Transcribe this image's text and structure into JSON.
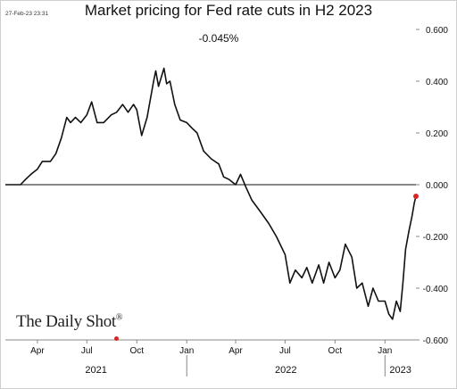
{
  "header": {
    "timestamp": "27-Feb-23 23:31",
    "title": "Market pricing for Fed rate cuts in H2 2023",
    "subtitle": "-0.045%"
  },
  "branding": {
    "logo_text": "The Daily Shot",
    "logo_mark": "®"
  },
  "colors": {
    "line": "#111111",
    "last_point": "#d62728",
    "zero_line": "#111111"
  },
  "chart_data": {
    "type": "line",
    "title": "Market pricing for Fed rate cuts in H2 2023",
    "subtitle": "-0.045%",
    "xlabel": "",
    "ylabel": "",
    "x_range": [
      "2021-02-01",
      "2023-02-27"
    ],
    "ylim": [
      -0.6,
      0.6
    ],
    "y_ticks": [
      0.6,
      0.4,
      0.2,
      0.0,
      -0.2,
      -0.4,
      -0.6
    ],
    "y_tick_labels": [
      "0.600",
      "0.400",
      "0.200",
      "0.000",
      "-0.200",
      "-0.400",
      "-0.600"
    ],
    "y_axis_side": "right",
    "grid": false,
    "zero_line": true,
    "x_month_ticks": [
      {
        "date": "2021-04-01",
        "label": "Apr"
      },
      {
        "date": "2021-07-01",
        "label": "Jul"
      },
      {
        "date": "2021-10-01",
        "label": "Oct"
      },
      {
        "date": "2022-01-01",
        "label": "Jan"
      },
      {
        "date": "2022-04-01",
        "label": "Apr"
      },
      {
        "date": "2022-07-01",
        "label": "Jul"
      },
      {
        "date": "2022-10-01",
        "label": "Oct"
      },
      {
        "date": "2023-01-01",
        "label": "Jan"
      }
    ],
    "x_year_labels": [
      {
        "label": "2021",
        "start": "2021-02-01",
        "end": "2022-01-01"
      },
      {
        "label": "2022",
        "start": "2022-01-01",
        "end": "2023-01-01"
      },
      {
        "label": "2023",
        "start": "2023-01-01",
        "end": "2023-02-27"
      }
    ],
    "series": [
      {
        "points": [
          [
            "2021-02-01",
            0.0
          ],
          [
            "2021-03-01",
            0.0
          ],
          [
            "2021-03-10",
            0.02
          ],
          [
            "2021-03-20",
            0.04
          ],
          [
            "2021-04-01",
            0.06
          ],
          [
            "2021-04-10",
            0.09
          ],
          [
            "2021-04-25",
            0.09
          ],
          [
            "2021-05-05",
            0.12
          ],
          [
            "2021-05-15",
            0.18
          ],
          [
            "2021-05-25",
            0.26
          ],
          [
            "2021-06-01",
            0.24
          ],
          [
            "2021-06-10",
            0.26
          ],
          [
            "2021-06-20",
            0.24
          ],
          [
            "2021-07-01",
            0.27
          ],
          [
            "2021-07-10",
            0.32
          ],
          [
            "2021-07-20",
            0.24
          ],
          [
            "2021-08-01",
            0.24
          ],
          [
            "2021-08-15",
            0.27
          ],
          [
            "2021-08-25",
            0.28
          ],
          [
            "2021-09-05",
            0.31
          ],
          [
            "2021-09-15",
            0.28
          ],
          [
            "2021-09-25",
            0.31
          ],
          [
            "2021-10-01",
            0.29
          ],
          [
            "2021-10-10",
            0.19
          ],
          [
            "2021-10-20",
            0.26
          ],
          [
            "2021-11-01",
            0.4
          ],
          [
            "2021-11-05",
            0.44
          ],
          [
            "2021-11-10",
            0.38
          ],
          [
            "2021-11-20",
            0.45
          ],
          [
            "2021-11-25",
            0.39
          ],
          [
            "2021-12-01",
            0.4
          ],
          [
            "2021-12-10",
            0.31
          ],
          [
            "2021-12-20",
            0.25
          ],
          [
            "2022-01-01",
            0.24
          ],
          [
            "2022-01-10",
            0.22
          ],
          [
            "2022-01-20",
            0.2
          ],
          [
            "2022-02-01",
            0.13
          ],
          [
            "2022-02-15",
            0.1
          ],
          [
            "2022-03-01",
            0.08
          ],
          [
            "2022-03-10",
            0.03
          ],
          [
            "2022-03-20",
            0.02
          ],
          [
            "2022-04-01",
            0.0
          ],
          [
            "2022-04-10",
            0.04
          ],
          [
            "2022-04-20",
            -0.01
          ],
          [
            "2022-05-01",
            -0.06
          ],
          [
            "2022-05-15",
            -0.1
          ],
          [
            "2022-06-01",
            -0.15
          ],
          [
            "2022-06-15",
            -0.2
          ],
          [
            "2022-07-01",
            -0.27
          ],
          [
            "2022-07-10",
            -0.38
          ],
          [
            "2022-07-20",
            -0.33
          ],
          [
            "2022-08-01",
            -0.36
          ],
          [
            "2022-08-10",
            -0.32
          ],
          [
            "2022-08-20",
            -0.38
          ],
          [
            "2022-09-01",
            -0.31
          ],
          [
            "2022-09-10",
            -0.38
          ],
          [
            "2022-09-20",
            -0.3
          ],
          [
            "2022-10-01",
            -0.36
          ],
          [
            "2022-10-10",
            -0.33
          ],
          [
            "2022-10-20",
            -0.23
          ],
          [
            "2022-11-01",
            -0.28
          ],
          [
            "2022-11-10",
            -0.4
          ],
          [
            "2022-11-20",
            -0.38
          ],
          [
            "2022-12-01",
            -0.47
          ],
          [
            "2022-12-10",
            -0.4
          ],
          [
            "2022-12-20",
            -0.45
          ],
          [
            "2023-01-01",
            -0.45
          ],
          [
            "2023-01-08",
            -0.5
          ],
          [
            "2023-01-15",
            -0.52
          ],
          [
            "2023-01-22",
            -0.45
          ],
          [
            "2023-01-29",
            -0.49
          ],
          [
            "2023-02-03",
            -0.38
          ],
          [
            "2023-02-08",
            -0.25
          ],
          [
            "2023-02-14",
            -0.18
          ],
          [
            "2023-02-20",
            -0.12
          ],
          [
            "2023-02-24",
            -0.07
          ],
          [
            "2023-02-27",
            -0.045
          ]
        ],
        "last_value": -0.045
      }
    ]
  }
}
